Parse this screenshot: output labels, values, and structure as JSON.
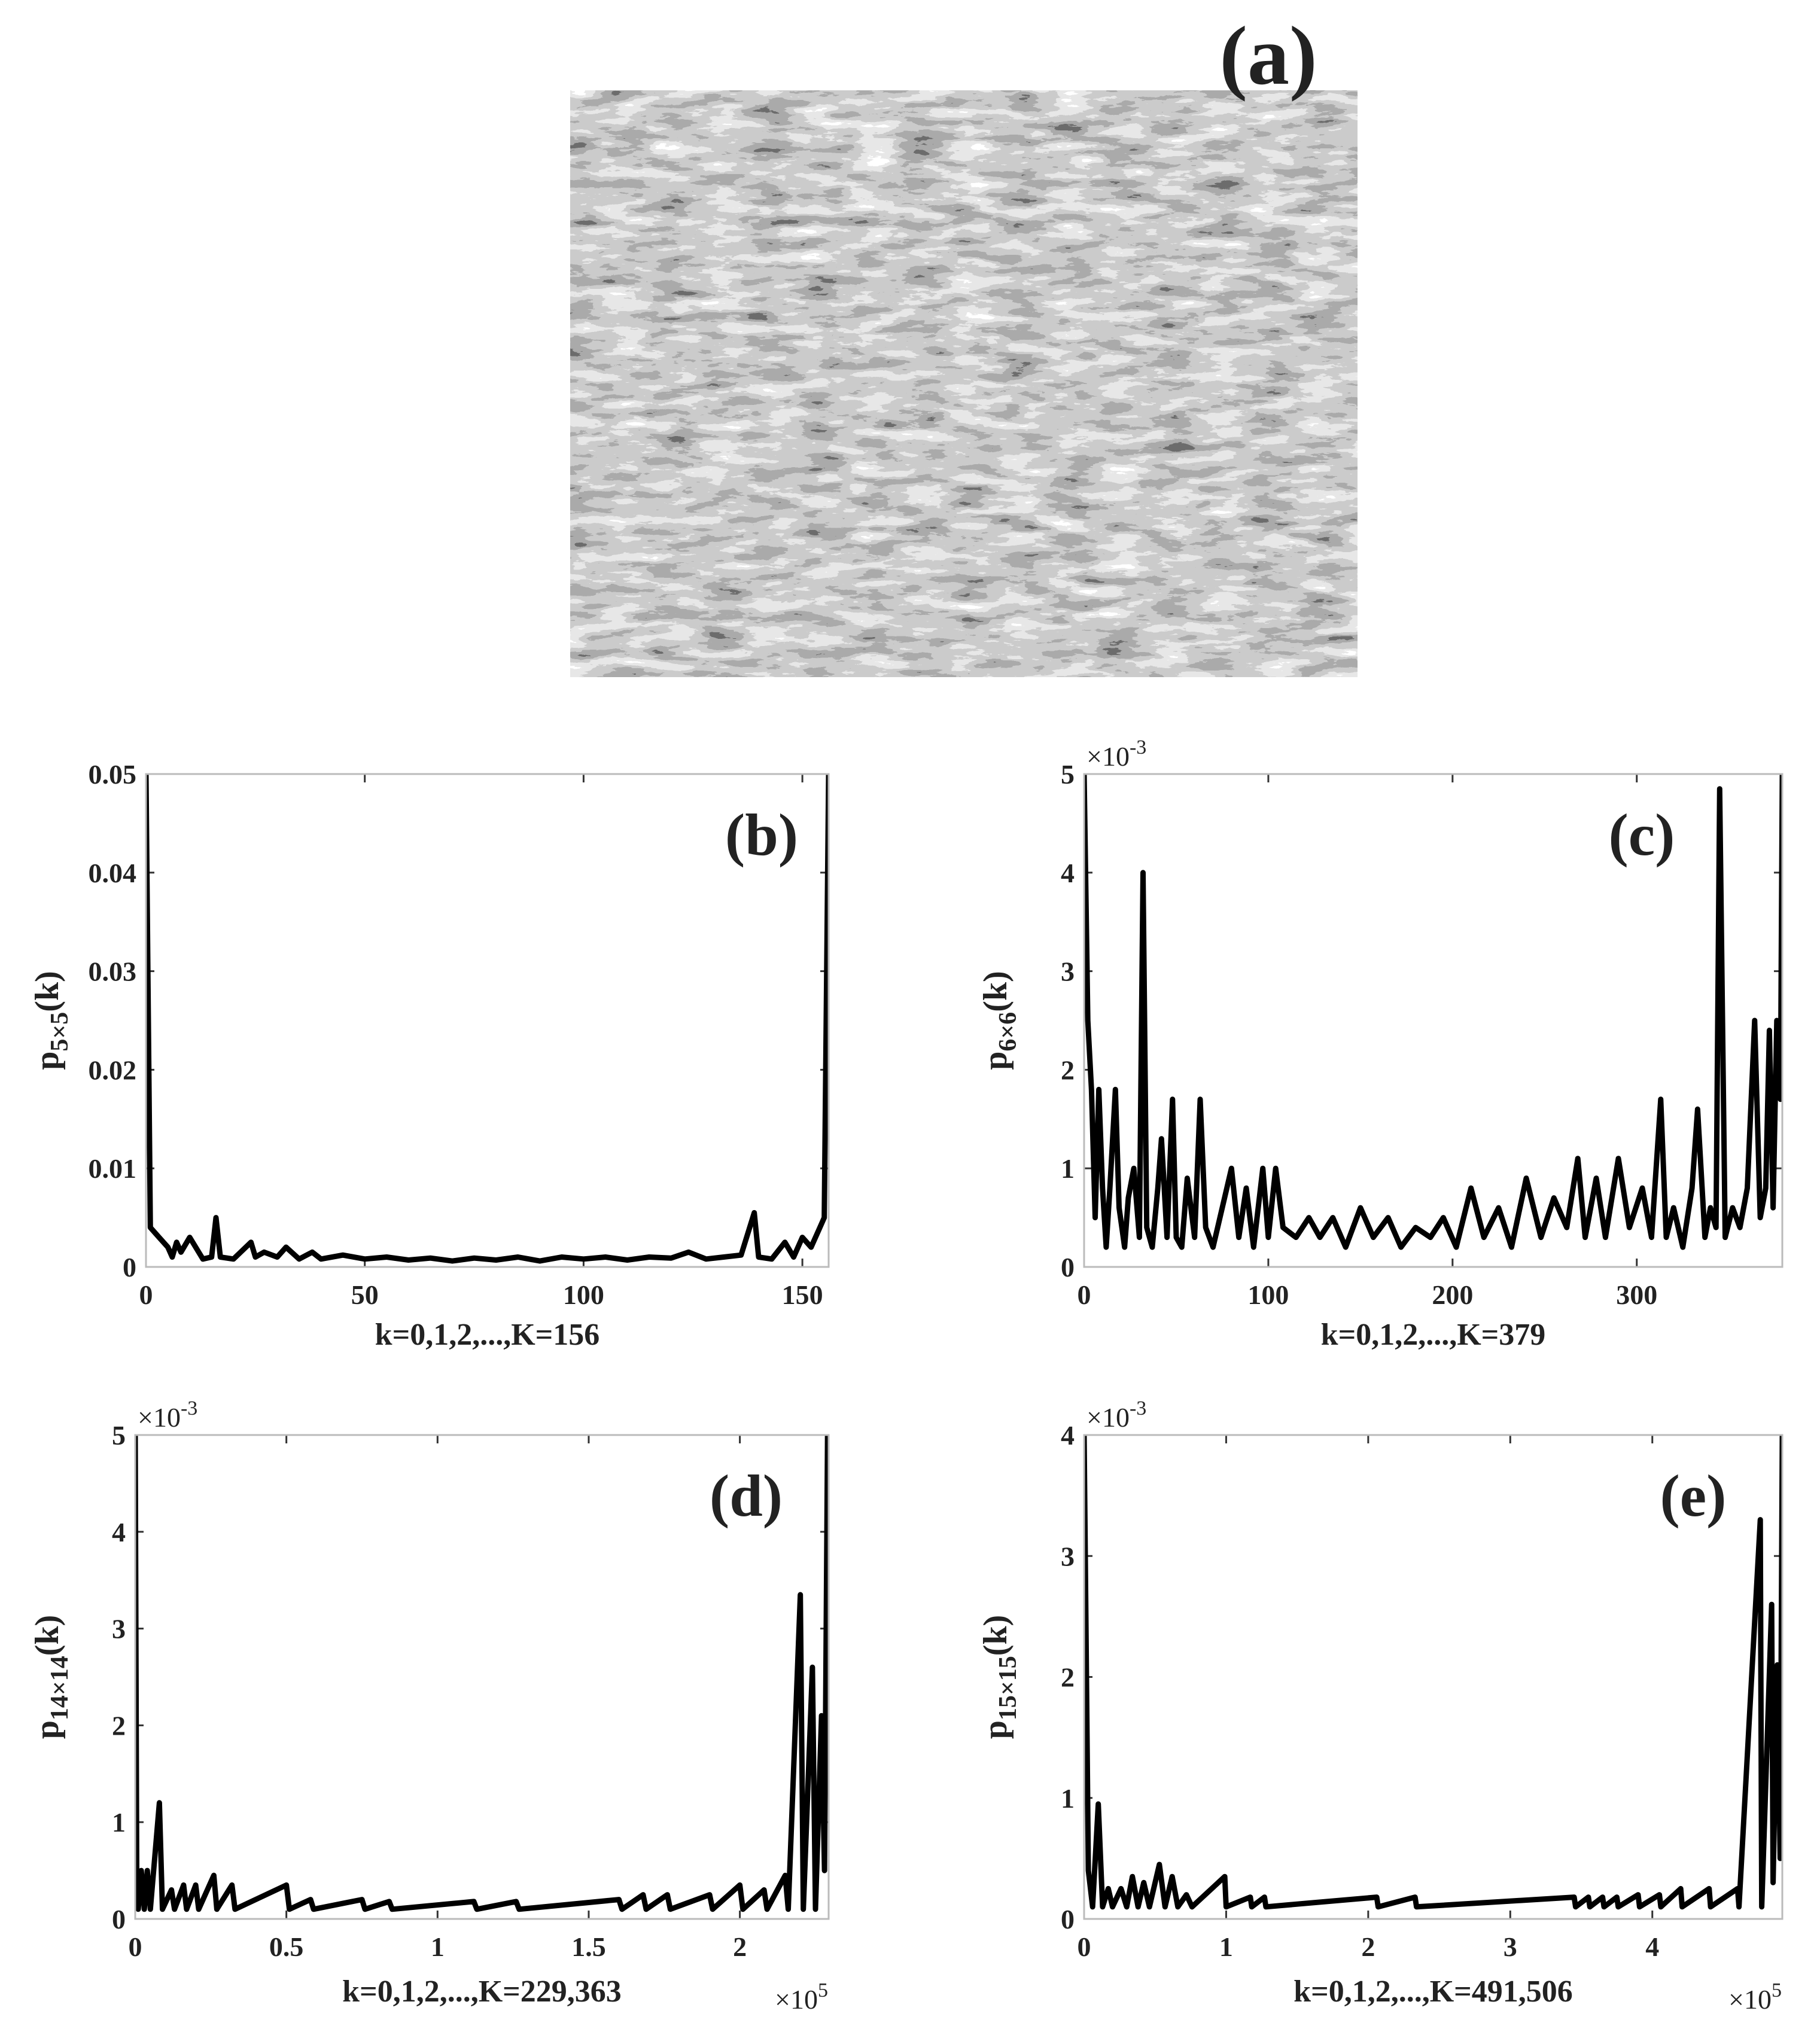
{
  "figure": {
    "label": "(a)"
  },
  "chart_data": [
    {
      "type": "line",
      "panel_label": "(b)",
      "xlabel": "k=0,1,2,...,K=156",
      "ylabel": {
        "main": "p",
        "sub": "5×5",
        "suffix": "(k)"
      },
      "color": "#000000",
      "xlim": [
        0,
        156
      ],
      "ylim": [
        0,
        0.05
      ],
      "xticks": [
        0,
        50,
        100,
        150
      ],
      "yticks": [
        0,
        0.01,
        0.02,
        0.03,
        0.04,
        0.05
      ],
      "x": [
        0,
        1,
        3,
        5,
        6,
        7,
        8,
        10,
        13,
        15,
        16,
        17,
        20,
        24,
        25,
        27,
        30,
        32,
        35,
        38,
        40,
        45,
        50,
        55,
        60,
        65,
        70,
        75,
        80,
        85,
        90,
        95,
        100,
        105,
        110,
        115,
        120,
        124,
        128,
        132,
        136,
        139,
        140,
        143,
        146,
        148,
        150,
        152,
        154,
        155,
        156
      ],
      "values": [
        0.05,
        0.004,
        0.003,
        0.002,
        0.001,
        0.0025,
        0.0015,
        0.003,
        0.0008,
        0.001,
        0.005,
        0.001,
        0.0008,
        0.0025,
        0.001,
        0.0015,
        0.001,
        0.002,
        0.0008,
        0.0015,
        0.0008,
        0.0012,
        0.0008,
        0.001,
        0.0007,
        0.0009,
        0.0006,
        0.0009,
        0.0007,
        0.001,
        0.0006,
        0.001,
        0.0008,
        0.001,
        0.0007,
        0.001,
        0.0009,
        0.0015,
        0.0008,
        0.001,
        0.0012,
        0.0055,
        0.001,
        0.0008,
        0.0025,
        0.001,
        0.003,
        0.002,
        0.004,
        0.005,
        0.05
      ]
    },
    {
      "type": "line",
      "panel_label": "(c)",
      "xlabel": "k=0,1,2,...,K=379",
      "ylabel": {
        "main": "p",
        "sub": "6×6",
        "suffix": "(k)"
      },
      "y_multiplier": {
        "base": "×10",
        "exponent": "-3"
      },
      "color": "#000000",
      "xlim": [
        0,
        379
      ],
      "ylim": [
        0,
        5
      ],
      "xticks": [
        0,
        100,
        200,
        300
      ],
      "yticks": [
        0,
        1,
        2,
        3,
        4,
        5
      ],
      "x": [
        0,
        2,
        4,
        6,
        8,
        10,
        12,
        14,
        17,
        19,
        22,
        24,
        27,
        30,
        32,
        34,
        37,
        40,
        42,
        45,
        48,
        50,
        53,
        56,
        60,
        63,
        66,
        70,
        75,
        80,
        84,
        88,
        92,
        97,
        100,
        104,
        108,
        115,
        122,
        128,
        135,
        142,
        150,
        157,
        165,
        172,
        180,
        188,
        195,
        202,
        210,
        217,
        225,
        232,
        240,
        248,
        255,
        262,
        268,
        272,
        278,
        283,
        290,
        296,
        303,
        308,
        313,
        316,
        320,
        325,
        330,
        333,
        337,
        340,
        343,
        345,
        348,
        352,
        356,
        360,
        364,
        367,
        370,
        372,
        374,
        376,
        378,
        379
      ],
      "values": [
        5,
        2.5,
        1.8,
        0.5,
        1.8,
        0.8,
        0.2,
        0.8,
        1.8,
        0.6,
        0.2,
        0.7,
        1.0,
        0.3,
        4.0,
        0.4,
        0.2,
        0.8,
        1.3,
        0.3,
        1.7,
        0.3,
        0.2,
        0.9,
        0.3,
        1.7,
        0.4,
        0.2,
        0.6,
        1.0,
        0.3,
        0.8,
        0.2,
        1.0,
        0.3,
        1.0,
        0.4,
        0.3,
        0.5,
        0.3,
        0.5,
        0.2,
        0.6,
        0.3,
        0.5,
        0.2,
        0.4,
        0.3,
        0.5,
        0.2,
        0.8,
        0.3,
        0.6,
        0.2,
        0.9,
        0.3,
        0.7,
        0.4,
        1.1,
        0.3,
        0.9,
        0.3,
        1.1,
        0.4,
        0.8,
        0.3,
        1.7,
        0.3,
        0.6,
        0.2,
        0.8,
        1.6,
        0.3,
        0.6,
        0.4,
        4.85,
        0.3,
        0.6,
        0.4,
        0.8,
        2.5,
        0.5,
        0.8,
        2.4,
        0.6,
        2.5,
        1.7,
        5
      ]
    },
    {
      "type": "line",
      "panel_label": "(d)",
      "xlabel": "k=0,1,2,...,K=229,363",
      "ylabel": {
        "main": "p",
        "sub": "14×14",
        "suffix": "(k)"
      },
      "y_multiplier": {
        "base": "×10",
        "exponent": "-3"
      },
      "x_multiplier": {
        "base": "×10",
        "exponent": "5"
      },
      "color": "#000000",
      "xlim": [
        0,
        2.29363
      ],
      "ylim": [
        0,
        5
      ],
      "xticks": [
        0,
        0.5,
        1,
        1.5,
        2
      ],
      "yticks": [
        0,
        1,
        2,
        3,
        4,
        5
      ],
      "x": [
        0,
        0.005,
        0.01,
        0.02,
        0.03,
        0.04,
        0.05,
        0.08,
        0.09,
        0.12,
        0.13,
        0.16,
        0.17,
        0.2,
        0.21,
        0.26,
        0.27,
        0.32,
        0.33,
        0.5,
        0.51,
        0.58,
        0.59,
        0.75,
        0.76,
        0.84,
        0.85,
        1.12,
        1.13,
        1.26,
        1.27,
        1.6,
        1.61,
        1.68,
        1.69,
        1.76,
        1.77,
        1.9,
        1.91,
        2.0,
        2.01,
        2.08,
        2.09,
        2.15,
        2.16,
        2.2,
        2.21,
        2.24,
        2.25,
        2.27,
        2.28,
        2.29
      ],
      "values": [
        5,
        0.5,
        0.1,
        0.5,
        0.1,
        0.5,
        0.1,
        1.2,
        0.1,
        0.3,
        0.1,
        0.35,
        0.1,
        0.35,
        0.1,
        0.45,
        0.1,
        0.35,
        0.1,
        0.35,
        0.1,
        0.2,
        0.1,
        0.2,
        0.1,
        0.18,
        0.1,
        0.18,
        0.1,
        0.18,
        0.1,
        0.2,
        0.1,
        0.25,
        0.1,
        0.25,
        0.1,
        0.25,
        0.1,
        0.35,
        0.1,
        0.3,
        0.1,
        0.45,
        0.1,
        3.35,
        0.1,
        2.6,
        0.1,
        2.1,
        0.5,
        5
      ]
    },
    {
      "type": "line",
      "panel_label": "(e)",
      "xlabel": "k=0,1,2,...,K=491,506",
      "ylabel": {
        "main": "p",
        "sub": "15×15",
        "suffix": "(k)"
      },
      "y_multiplier": {
        "base": "×10",
        "exponent": "-3"
      },
      "x_multiplier": {
        "base": "×10",
        "exponent": "5"
      },
      "color": "#000000",
      "xlim": [
        0,
        4.91506
      ],
      "ylim": [
        0,
        4
      ],
      "xticks": [
        0,
        1,
        2,
        3,
        4
      ],
      "yticks": [
        0,
        1,
        2,
        3,
        4
      ],
      "x": [
        0,
        0.03,
        0.06,
        0.1,
        0.13,
        0.17,
        0.2,
        0.26,
        0.3,
        0.34,
        0.38,
        0.42,
        0.46,
        0.53,
        0.57,
        0.62,
        0.66,
        0.72,
        0.76,
        0.99,
        1.0,
        1.17,
        1.18,
        1.27,
        1.28,
        2.06,
        2.07,
        2.33,
        2.34,
        3.45,
        3.46,
        3.55,
        3.56,
        3.65,
        3.66,
        3.75,
        3.76,
        3.9,
        3.91,
        4.05,
        4.06,
        4.2,
        4.21,
        4.4,
        4.41,
        4.6,
        4.61,
        4.76,
        4.77,
        4.84,
        4.85,
        4.88,
        4.9,
        4.915
      ],
      "values": [
        4,
        0.4,
        0.1,
        0.95,
        0.1,
        0.25,
        0.1,
        0.25,
        0.1,
        0.35,
        0.1,
        0.3,
        0.1,
        0.45,
        0.1,
        0.35,
        0.1,
        0.2,
        0.1,
        0.35,
        0.1,
        0.18,
        0.1,
        0.18,
        0.1,
        0.18,
        0.1,
        0.18,
        0.1,
        0.18,
        0.1,
        0.18,
        0.1,
        0.18,
        0.1,
        0.18,
        0.1,
        0.2,
        0.1,
        0.2,
        0.1,
        0.25,
        0.1,
        0.25,
        0.1,
        0.25,
        0.1,
        3.3,
        0.1,
        2.6,
        0.3,
        2.1,
        0.5,
        4
      ]
    }
  ]
}
